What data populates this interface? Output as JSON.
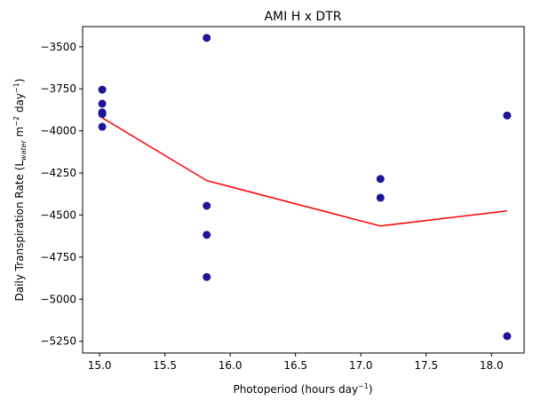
{
  "chart_data": {
    "type": "scatter",
    "title": "AMI H x DTR",
    "xlabel": {
      "main": "Photoperiod (hours day",
      "sup": "−1",
      "close": ")"
    },
    "ylabel": {
      "main": "Daily Transpiration Rate (L",
      "sub": "water",
      "mid": " m",
      "sup1": "−2",
      "mid2": " day",
      "sup2": "−1",
      "close": ")"
    },
    "xlim": [
      14.87,
      18.25
    ],
    "ylim": [
      -5320,
      -3380
    ],
    "xticks": [
      15.0,
      15.5,
      16.0,
      16.5,
      17.0,
      17.5,
      18.0
    ],
    "xtick_labels": [
      "15.0",
      "15.5",
      "16.0",
      "16.5",
      "17.0",
      "17.5",
      "18.0"
    ],
    "yticks": [
      -3500,
      -3750,
      -4000,
      -4250,
      -4500,
      -4750,
      -5000,
      -5250
    ],
    "ytick_labels": [
      "−3500",
      "−3750",
      "−4000",
      "−4250",
      "−4500",
      "−4750",
      "−5000",
      "−5250"
    ],
    "grid": false,
    "series": [
      {
        "kind": "scatter",
        "color": "#1f1496",
        "points": [
          {
            "x": 15.02,
            "y": -3755
          },
          {
            "x": 15.02,
            "y": -3838
          },
          {
            "x": 15.02,
            "y": -3890
          },
          {
            "x": 15.02,
            "y": -3900
          },
          {
            "x": 15.02,
            "y": -3975
          },
          {
            "x": 15.82,
            "y": -3447
          },
          {
            "x": 15.82,
            "y": -4445
          },
          {
            "x": 15.82,
            "y": -4618
          },
          {
            "x": 15.82,
            "y": -4868
          },
          {
            "x": 17.15,
            "y": -4285
          },
          {
            "x": 17.15,
            "y": -4397
          },
          {
            "x": 18.12,
            "y": -3908
          },
          {
            "x": 18.12,
            "y": -5220
          }
        ]
      },
      {
        "kind": "line",
        "color": "#ff0000",
        "points": [
          {
            "x": 15.02,
            "y": -3922
          },
          {
            "x": 15.82,
            "y": -4295
          },
          {
            "x": 17.15,
            "y": -4565
          },
          {
            "x": 18.12,
            "y": -4475
          }
        ]
      }
    ]
  }
}
